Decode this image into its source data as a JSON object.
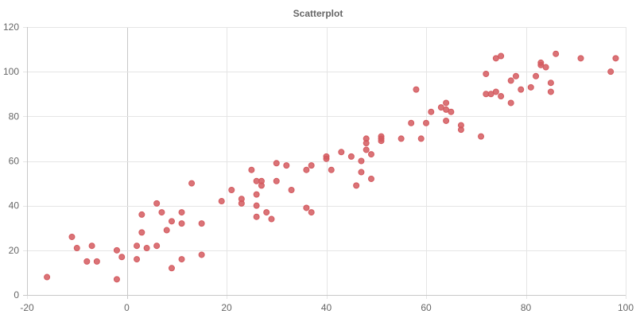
{
  "chart_data": {
    "type": "scatter",
    "title": "Scatterplot",
    "xlabel": "",
    "ylabel": "",
    "xlim": [
      -20,
      100
    ],
    "ylim": [
      0,
      120
    ],
    "x_ticks": [
      -20,
      0,
      20,
      40,
      60,
      80,
      100
    ],
    "y_ticks": [
      0,
      20,
      40,
      60,
      80,
      100,
      120
    ],
    "grid": true,
    "legend": "none",
    "point_color": "#d45a5f",
    "series": [
      {
        "points": [
          [
            -16,
            8
          ],
          [
            -11,
            26
          ],
          [
            -10,
            21
          ],
          [
            -8,
            15
          ],
          [
            -7,
            22
          ],
          [
            -6,
            15
          ],
          [
            -2,
            20
          ],
          [
            -2,
            7
          ],
          [
            -1,
            17
          ],
          [
            2,
            22
          ],
          [
            2,
            16
          ],
          [
            3,
            36
          ],
          [
            3,
            28
          ],
          [
            4,
            21
          ],
          [
            6,
            41
          ],
          [
            6,
            22
          ],
          [
            7,
            37
          ],
          [
            8,
            29
          ],
          [
            9,
            33
          ],
          [
            9,
            12
          ],
          [
            11,
            37
          ],
          [
            11,
            32
          ],
          [
            11,
            16
          ],
          [
            13,
            50
          ],
          [
            15,
            32
          ],
          [
            15,
            18
          ],
          [
            19,
            42
          ],
          [
            21,
            47
          ],
          [
            23,
            43
          ],
          [
            23,
            41
          ],
          [
            25,
            56
          ],
          [
            26,
            51
          ],
          [
            26,
            45
          ],
          [
            26,
            40
          ],
          [
            26,
            35
          ],
          [
            27,
            51
          ],
          [
            27,
            49
          ],
          [
            28,
            37
          ],
          [
            29,
            34
          ],
          [
            30,
            59
          ],
          [
            30,
            51
          ],
          [
            32,
            58
          ],
          [
            33,
            47
          ],
          [
            36,
            56
          ],
          [
            36,
            39
          ],
          [
            37,
            58
          ],
          [
            37,
            37
          ],
          [
            40,
            62
          ],
          [
            40,
            61
          ],
          [
            41,
            56
          ],
          [
            43,
            64
          ],
          [
            45,
            62
          ],
          [
            46,
            49
          ],
          [
            47,
            60
          ],
          [
            47,
            55
          ],
          [
            48,
            70
          ],
          [
            48,
            68
          ],
          [
            48,
            65
          ],
          [
            49,
            63
          ],
          [
            49,
            52
          ],
          [
            51,
            71
          ],
          [
            51,
            70
          ],
          [
            51,
            69
          ],
          [
            55,
            70
          ],
          [
            57,
            77
          ],
          [
            58,
            92
          ],
          [
            59,
            70
          ],
          [
            60,
            77
          ],
          [
            61,
            82
          ],
          [
            63,
            84
          ],
          [
            64,
            86
          ],
          [
            64,
            83
          ],
          [
            64,
            78
          ],
          [
            65,
            82
          ],
          [
            67,
            76
          ],
          [
            67,
            74
          ],
          [
            71,
            71
          ],
          [
            72,
            99
          ],
          [
            72,
            90
          ],
          [
            73,
            90
          ],
          [
            74,
            106
          ],
          [
            74,
            91
          ],
          [
            75,
            107
          ],
          [
            75,
            89
          ],
          [
            77,
            96
          ],
          [
            77,
            86
          ],
          [
            78,
            98
          ],
          [
            79,
            92
          ],
          [
            81,
            93
          ],
          [
            82,
            98
          ],
          [
            83,
            104
          ],
          [
            83,
            103
          ],
          [
            84,
            102
          ],
          [
            85,
            95
          ],
          [
            85,
            91
          ],
          [
            86,
            108
          ],
          [
            91,
            106
          ],
          [
            97,
            100
          ],
          [
            98,
            106
          ]
        ]
      }
    ]
  }
}
